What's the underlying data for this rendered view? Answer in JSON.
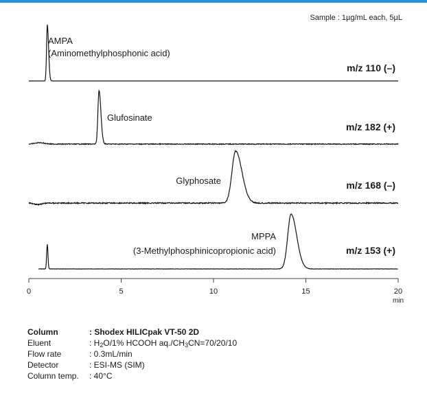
{
  "chart_data": {
    "type": "line",
    "sample_note": "Sample : 1µg/mL each, 5µL",
    "x_axis": {
      "range": [
        0,
        20
      ],
      "ticks": [
        0,
        5,
        10,
        15,
        20
      ],
      "unit": "min"
    },
    "series": [
      {
        "name": "m/z 110 (–)",
        "peak_time": 1.0,
        "peak_width": 0.04,
        "peak_height": 1.0,
        "labels": [
          "AMPA",
          "(Aminomethylphosphonic acid)"
        ]
      },
      {
        "name": "m/z 182 (+)",
        "peak_time": 3.8,
        "peak_width": 0.06,
        "peak_height": 1.0,
        "labels": [
          "Glufosinate"
        ]
      },
      {
        "name": "m/z 168 (–)",
        "peak_time": 11.2,
        "peak_width": 0.2,
        "peak_height": 1.0,
        "labels": [
          "Glyphosate"
        ]
      },
      {
        "name": "m/z 153 (+)",
        "peak_time": 14.2,
        "peak_width": 0.18,
        "peak_height": 1.0,
        "minor_peak_time": 1.0,
        "minor_peak_height": 0.45,
        "labels": [
          "MPPA",
          "(3-Methylphosphinicopropionic acid)"
        ]
      }
    ]
  },
  "conditions": {
    "column_label": "Column",
    "column_value": ": Shodex HILICpak VT-50 2D",
    "eluent_label": "Eluent",
    "eluent_prefix": ": H",
    "eluent_sub1": "2",
    "eluent_mid": "O/1% HCOOH aq./CH",
    "eluent_sub2": "3",
    "eluent_suffix": "CN=70/20/10",
    "flow_label": "Flow rate",
    "flow_value": ": 0.3mL/min",
    "detector_label": "Detector",
    "detector_value": ": ESI-MS (SIM)",
    "temp_label": "Column temp.",
    "temp_value": ": 40°C"
  }
}
